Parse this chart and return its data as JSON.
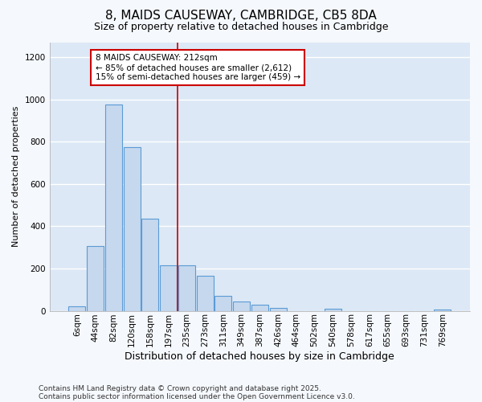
{
  "title_line1": "8, MAIDS CAUSEWAY, CAMBRIDGE, CB5 8DA",
  "title_line2": "Size of property relative to detached houses in Cambridge",
  "xlabel": "Distribution of detached houses by size in Cambridge",
  "ylabel": "Number of detached properties",
  "categories": [
    "6sqm",
    "44sqm",
    "82sqm",
    "120sqm",
    "158sqm",
    "197sqm",
    "235sqm",
    "273sqm",
    "311sqm",
    "349sqm",
    "387sqm",
    "426sqm",
    "464sqm",
    "502sqm",
    "540sqm",
    "578sqm",
    "617sqm",
    "655sqm",
    "693sqm",
    "731sqm",
    "769sqm"
  ],
  "values": [
    20,
    305,
    975,
    775,
    435,
    215,
    215,
    165,
    70,
    45,
    30,
    15,
    0,
    0,
    8,
    0,
    0,
    0,
    0,
    0,
    5
  ],
  "bar_color": "#c5d8ee",
  "bar_edge_color": "#5b9bd5",
  "bg_color": "#dce8f5",
  "plot_bg_color": "#dce8f5",
  "fig_bg_color": "#f5f8fc",
  "grid_color": "#ffffff",
  "annotation_text": "8 MAIDS CAUSEWAY: 212sqm\n← 85% of detached houses are smaller (2,612)\n15% of semi-detached houses are larger (459) →",
  "annotation_box_facecolor": "#ffffff",
  "annotation_box_edgecolor": "#cc0000",
  "vline_x": 5.5,
  "vline_color": "#cc0000",
  "ylim": [
    0,
    1270
  ],
  "yticks": [
    0,
    200,
    400,
    600,
    800,
    1000,
    1200
  ],
  "footnote1": "Contains HM Land Registry data © Crown copyright and database right 2025.",
  "footnote2": "Contains public sector information licensed under the Open Government Licence v3.0.",
  "title1_fontsize": 11,
  "title2_fontsize": 9,
  "xlabel_fontsize": 9,
  "ylabel_fontsize": 8,
  "tick_fontsize": 7.5,
  "annot_fontsize": 7.5,
  "footnote_fontsize": 6.5
}
